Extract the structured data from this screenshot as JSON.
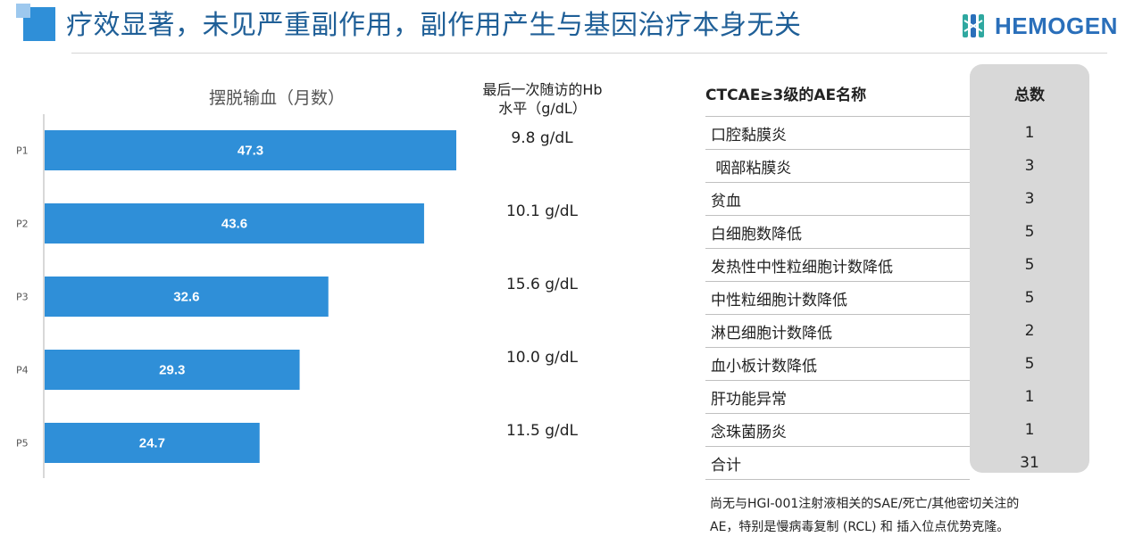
{
  "header": {
    "title": "疗效显著，未见严重副作用，副作用产生与基因治疗本身无关",
    "logo_text": "HEMOGEN",
    "accent_color": "#2f8fd8"
  },
  "chart_data": {
    "type": "bar",
    "orientation": "horizontal",
    "title": "摆脱输血（月数）",
    "categories": [
      "P1",
      "P2",
      "P3",
      "P4",
      "P5"
    ],
    "values": [
      47.3,
      43.6,
      32.6,
      29.3,
      24.7
    ],
    "value_labels": [
      "47.3",
      "43.6",
      "32.6",
      "29.3",
      "24.7"
    ],
    "bar_color": "#2f8fd8",
    "xlim": [
      0,
      50
    ],
    "grid": false,
    "hb_header": [
      "最后一次随访的Hb",
      "水平（g/dL）"
    ],
    "hb_values": [
      "9.8 g/dL",
      "10.1 g/dL",
      "15.6 g/dL",
      "10.0 g/dL",
      "11.5 g/dL"
    ]
  },
  "table": {
    "header_name": "CTCAE≥3级的AE名称",
    "header_total": "总数",
    "rows": [
      {
        "name": "口腔黏膜炎",
        "total": "1"
      },
      {
        "name": " 咽部粘膜炎",
        "total": "3"
      },
      {
        "name": "贫血",
        "total": "3"
      },
      {
        "name": "白细胞数降低",
        "total": "5"
      },
      {
        "name": "发热性中性粒细胞计数降低",
        "total": "5"
      },
      {
        "name": "中性粒细胞计数降低",
        "total": "5"
      },
      {
        "name": "淋巴细胞计数降低",
        "total": "2"
      },
      {
        "name": "血小板计数降低",
        "total": "5"
      },
      {
        "name": "肝功能异常",
        "total": "1"
      },
      {
        "name": "念珠菌肠炎",
        "total": "1"
      },
      {
        "name": "合计",
        "total": "31"
      }
    ]
  },
  "footnote": {
    "line1": "尚无与HGI-001注射液相关的SAE/死亡/其他密切关注的",
    "line2": "AE，特别是慢病毒复制 (RCL) 和 插入位点优势克隆。"
  }
}
